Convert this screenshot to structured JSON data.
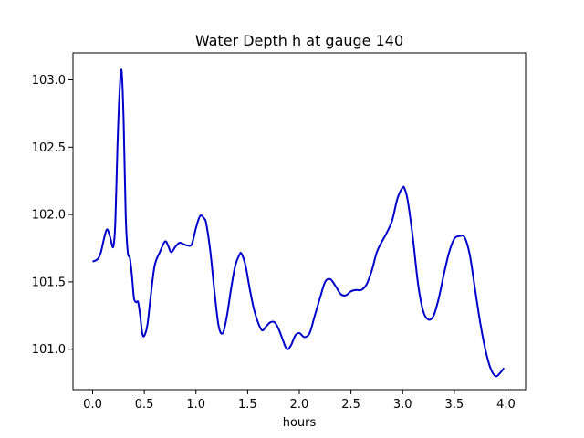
{
  "chart_data": {
    "type": "line",
    "title": "Water Depth h at gauge 140",
    "xlabel": "hours",
    "ylabel": "",
    "xlim": [
      -0.19,
      4.19
    ],
    "ylim": [
      100.7,
      103.2
    ],
    "xticks": [
      0.0,
      0.5,
      1.0,
      1.5,
      2.0,
      2.5,
      3.0,
      3.5,
      4.0
    ],
    "xtick_labels": [
      "0.0",
      "0.5",
      "1.0",
      "1.5",
      "2.0",
      "2.5",
      "3.0",
      "3.5",
      "4.0"
    ],
    "yticks": [
      101.0,
      101.5,
      102.0,
      102.5,
      103.0
    ],
    "ytick_labels": [
      "101.0",
      "101.5",
      "102.0",
      "102.5",
      "103.0"
    ],
    "grid": false,
    "series": [
      {
        "color": "#0000cc",
        "x": [
          0.0,
          0.05,
          0.08,
          0.11,
          0.14,
          0.17,
          0.2,
          0.22,
          0.24,
          0.26,
          0.28,
          0.3,
          0.32,
          0.34,
          0.36,
          0.38,
          0.4,
          0.42,
          0.44,
          0.46,
          0.48,
          0.5,
          0.53,
          0.56,
          0.6,
          0.65,
          0.7,
          0.73,
          0.76,
          0.8,
          0.84,
          0.88,
          0.92,
          0.96,
          1.0,
          1.04,
          1.08,
          1.1,
          1.14,
          1.18,
          1.22,
          1.26,
          1.3,
          1.34,
          1.38,
          1.42,
          1.44,
          1.48,
          1.52,
          1.56,
          1.6,
          1.64,
          1.68,
          1.72,
          1.76,
          1.8,
          1.84,
          1.88,
          1.92,
          1.96,
          2.0,
          2.05,
          2.1,
          2.15,
          2.2,
          2.25,
          2.3,
          2.35,
          2.4,
          2.45,
          2.5,
          2.55,
          2.6,
          2.65,
          2.7,
          2.75,
          2.8,
          2.85,
          2.9,
          2.95,
          3.0,
          3.02,
          3.05,
          3.1,
          3.15,
          3.2,
          3.25,
          3.3,
          3.35,
          3.4,
          3.45,
          3.5,
          3.55,
          3.6,
          3.65,
          3.7,
          3.75,
          3.8,
          3.85,
          3.9,
          3.95,
          3.98
        ],
        "y": [
          101.65,
          101.67,
          101.72,
          101.82,
          101.89,
          101.83,
          101.76,
          101.95,
          102.5,
          102.9,
          103.07,
          102.7,
          102.0,
          101.72,
          101.68,
          101.55,
          101.38,
          101.35,
          101.35,
          101.25,
          101.12,
          101.1,
          101.18,
          101.38,
          101.62,
          101.72,
          101.8,
          101.77,
          101.72,
          101.76,
          101.79,
          101.78,
          101.77,
          101.78,
          101.9,
          101.99,
          101.97,
          101.93,
          101.72,
          101.42,
          101.17,
          101.12,
          101.25,
          101.45,
          101.62,
          101.7,
          101.71,
          101.62,
          101.45,
          101.3,
          101.2,
          101.14,
          101.17,
          101.2,
          101.2,
          101.15,
          101.07,
          101.0,
          101.03,
          101.1,
          101.12,
          101.09,
          101.12,
          101.25,
          101.38,
          101.5,
          101.52,
          101.47,
          101.41,
          101.4,
          101.43,
          101.44,
          101.44,
          101.48,
          101.58,
          101.72,
          101.8,
          101.87,
          101.96,
          102.12,
          102.2,
          102.19,
          102.1,
          101.82,
          101.48,
          101.28,
          101.22,
          101.25,
          101.38,
          101.56,
          101.72,
          101.82,
          101.84,
          101.83,
          101.7,
          101.45,
          101.2,
          101.0,
          100.86,
          100.8,
          100.83,
          100.86
        ]
      }
    ]
  }
}
